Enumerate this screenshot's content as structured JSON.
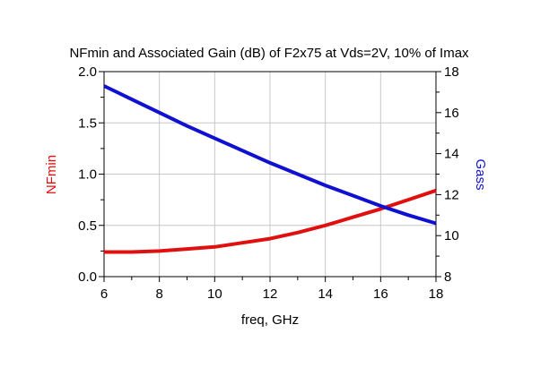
{
  "chart_data": {
    "type": "line",
    "title": "NFmin and Associated Gain (dB) of F2x75 at Vds=2V, 10% of Imax",
    "xlabel": "freq, GHz",
    "ylabel_left": "NFmin",
    "ylabel_right": "Gass",
    "xlim": [
      6,
      18
    ],
    "ylim_left": [
      0,
      2
    ],
    "ylim_right": [
      8,
      18
    ],
    "x_ticks": [
      "6",
      "8",
      "10",
      "12",
      "14",
      "16",
      "18"
    ],
    "y_left_ticks": [
      "0.0",
      "0.5",
      "1.0",
      "1.5",
      "2.0"
    ],
    "y_right_ticks": [
      "8",
      "10",
      "12",
      "14",
      "16",
      "18"
    ],
    "grid": true,
    "colors": {
      "nfmin": "#e01010",
      "gass": "#1010d0",
      "grid": "#c8c8c8"
    },
    "series": [
      {
        "name": "NFmin",
        "axis": "left",
        "x": [
          6,
          7,
          8,
          9,
          10,
          11,
          12,
          13,
          14,
          15,
          16,
          17,
          18
        ],
        "values": [
          0.24,
          0.24,
          0.25,
          0.27,
          0.29,
          0.33,
          0.37,
          0.43,
          0.5,
          0.58,
          0.66,
          0.75,
          0.84
        ]
      },
      {
        "name": "Gass",
        "axis": "right",
        "x": [
          6,
          7,
          8,
          9,
          10,
          11,
          12,
          13,
          14,
          15,
          16,
          17,
          18
        ],
        "values": [
          17.3,
          16.65,
          16.0,
          15.35,
          14.75,
          14.15,
          13.55,
          13.0,
          12.45,
          11.95,
          11.45,
          11.0,
          10.6
        ]
      }
    ]
  }
}
